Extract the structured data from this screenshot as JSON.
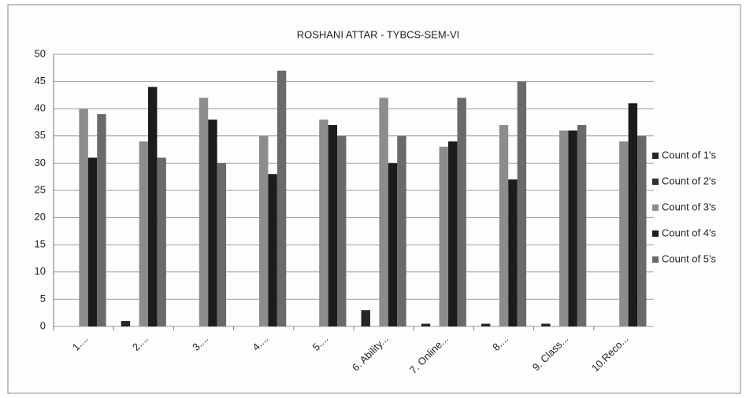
{
  "chart_data": {
    "type": "bar",
    "title": "ROSHANI  ATTAR - TYBCS-SEM-VI",
    "categories": [
      "1....",
      "2....",
      "3....",
      "4....",
      "5....",
      "6. Ability...",
      "7. Online...",
      "8....",
      "9. Class...",
      "10.Reco..."
    ],
    "series": [
      {
        "name": "Count of 1's",
        "color": "#262626",
        "values": [
          0,
          1,
          0,
          0,
          0,
          3,
          0.5,
          0.5,
          0.5,
          0
        ]
      },
      {
        "name": "Count of 2's",
        "color": "#303030",
        "values": [
          0,
          0,
          0,
          0,
          0,
          0,
          0,
          0,
          0,
          0
        ]
      },
      {
        "name": "Count of 3's",
        "color": "#8c8c8c",
        "values": [
          40,
          34,
          42,
          35,
          38,
          42,
          33,
          37,
          36,
          34
        ]
      },
      {
        "name": "Count of 4's",
        "color": "#1c1c1c",
        "values": [
          31,
          44,
          38,
          28,
          37,
          30,
          34,
          27,
          36,
          41
        ]
      },
      {
        "name": "Count of 5's",
        "color": "#6a6a6a",
        "values": [
          39,
          31,
          30,
          47,
          35,
          35,
          42,
          45,
          37,
          35
        ]
      }
    ],
    "ylim": [
      0,
      50
    ],
    "yticks": [
      0,
      5,
      10,
      15,
      20,
      25,
      30,
      35,
      40,
      45,
      50
    ],
    "grid": true,
    "legend": "right"
  }
}
